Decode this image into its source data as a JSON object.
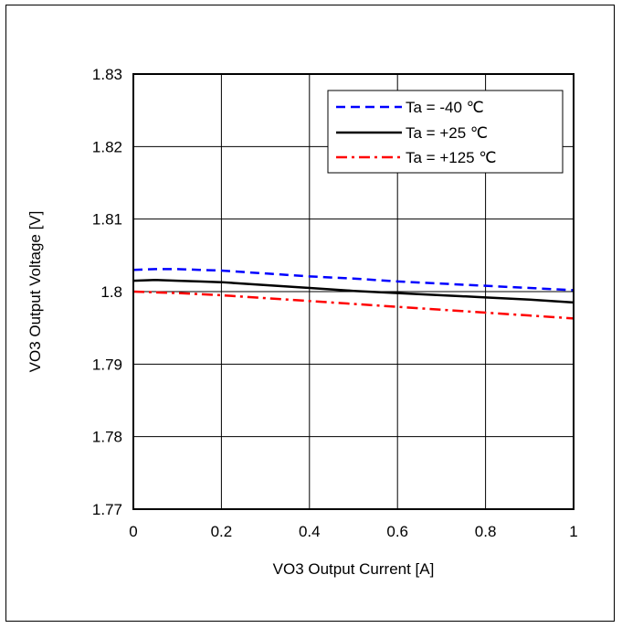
{
  "chart_data": {
    "type": "line",
    "xlabel": "VO3 Output Current [A]",
    "ylabel": "VO3 Output Voltage [V]",
    "xlim": [
      0,
      1
    ],
    "ylim": [
      1.77,
      1.83
    ],
    "x_ticks": [
      "0",
      "0.2",
      "0.4",
      "0.6",
      "0.8",
      "1"
    ],
    "y_ticks": [
      "1.77",
      "1.78",
      "1.79",
      "1.8",
      "1.81",
      "1.82",
      "1.83"
    ],
    "grid": true,
    "legend_position": "top-right",
    "series": [
      {
        "name": "Ta = -40 ℃",
        "color": "#0000ff",
        "dash": "dashed",
        "x": [
          0,
          0.05,
          0.1,
          0.15,
          0.2,
          0.3,
          0.4,
          0.5,
          0.6,
          0.7,
          0.8,
          0.9,
          1.0
        ],
        "y": [
          1.803,
          1.8031,
          1.8031,
          1.803,
          1.8029,
          1.8025,
          1.8021,
          1.8018,
          1.8014,
          1.8011,
          1.8008,
          1.8005,
          1.8002
        ]
      },
      {
        "name": "Ta = +25 ℃",
        "color": "#000000",
        "dash": "solid",
        "x": [
          0,
          0.05,
          0.1,
          0.15,
          0.2,
          0.3,
          0.4,
          0.5,
          0.6,
          0.7,
          0.8,
          0.9,
          1.0
        ],
        "y": [
          1.8015,
          1.8016,
          1.8015,
          1.8014,
          1.8013,
          1.8009,
          1.8005,
          1.8001,
          1.7998,
          1.7995,
          1.7992,
          1.7989,
          1.7985
        ]
      },
      {
        "name": "Ta = +125 ℃",
        "color": "#ff0000",
        "dash": "dashdot",
        "x": [
          0,
          0.1,
          0.2,
          0.3,
          0.4,
          0.5,
          0.6,
          0.7,
          0.8,
          0.9,
          1.0
        ],
        "y": [
          1.8,
          1.7998,
          1.7995,
          1.7991,
          1.7987,
          1.7983,
          1.7979,
          1.7975,
          1.7971,
          1.7967,
          1.7963
        ]
      }
    ]
  }
}
